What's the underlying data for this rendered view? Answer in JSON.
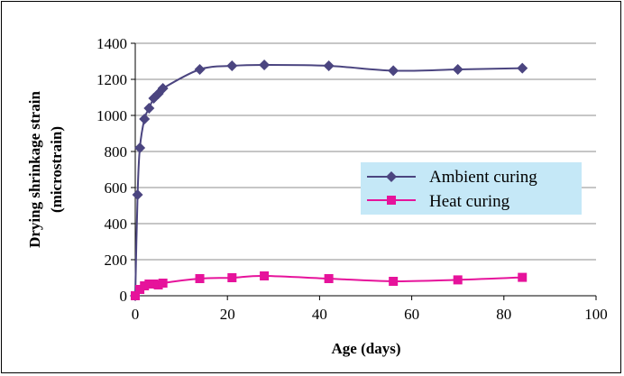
{
  "chart_data": {
    "type": "line",
    "xlabel": "Age (days)",
    "ylabel_line1": "Drying shrinkage strain",
    "ylabel_line2": "(microstrain)",
    "xlim": [
      0,
      100
    ],
    "ylim": [
      0,
      1400
    ],
    "x_ticks": [
      0,
      20,
      40,
      60,
      80,
      100
    ],
    "y_ticks": [
      0,
      200,
      400,
      600,
      800,
      1000,
      1200,
      1400
    ],
    "grid": "horizontal",
    "legend_position": "center-right",
    "legend_background": "#c5e8f7",
    "series": [
      {
        "name": "Ambient curing",
        "color": "#4b4580",
        "marker": "diamond",
        "x": [
          0,
          0.5,
          1,
          2,
          3,
          4,
          5,
          6,
          14,
          21,
          28,
          42,
          56,
          70,
          84
        ],
        "y": [
          0,
          560,
          820,
          980,
          1040,
          1095,
          1120,
          1150,
          1255,
          1275,
          1280,
          1275,
          1248,
          1255,
          1262
        ]
      },
      {
        "name": "Heat curing",
        "color": "#e6139b",
        "marker": "square",
        "x": [
          0,
          1,
          2,
          3,
          4,
          5,
          6,
          14,
          21,
          28,
          42,
          56,
          70,
          84
        ],
        "y": [
          0,
          35,
          55,
          65,
          65,
          60,
          70,
          95,
          100,
          110,
          95,
          80,
          88,
          102
        ]
      }
    ]
  }
}
